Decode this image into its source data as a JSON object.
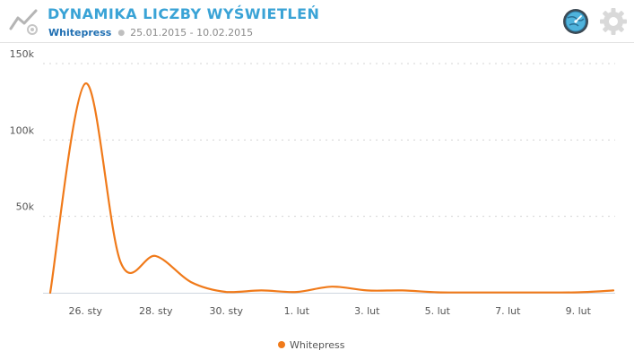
{
  "header": {
    "title": "DYNAMIKA LICZBY WYŚWIETLEŃ",
    "brand": "Whitepress",
    "date_range": "25.01.2015 - 10.02.2015",
    "icons": [
      "line-chart-icon",
      "globe-icon",
      "gear-icon"
    ]
  },
  "colors": {
    "accent": "#3aa3d6",
    "brand": "#1f6fb2",
    "series": "#f07a1a",
    "grid": "#d4d4d4"
  },
  "chart_data": {
    "type": "line",
    "x": [
      "25.01.2015",
      "26.01.2015",
      "27.01.2015",
      "28.01.2015",
      "29.01.2015",
      "30.01.2015",
      "31.01.2015",
      "01.02.2015",
      "02.02.2015",
      "03.02.2015",
      "04.02.2015",
      "05.02.2015",
      "06.02.2015",
      "07.02.2015",
      "08.02.2015",
      "09.02.2015",
      "10.02.2015"
    ],
    "series": [
      {
        "name": "Whitepress",
        "values": [
          0,
          137000,
          20000,
          24000,
          7000,
          500,
          1500,
          500,
          4000,
          1500,
          1500,
          300,
          200,
          200,
          200,
          300,
          1500
        ]
      }
    ],
    "y_ticks": [
      {
        "value": 50000,
        "label": "50k"
      },
      {
        "value": 100000,
        "label": "100k"
      },
      {
        "value": 150000,
        "label": "150k"
      }
    ],
    "x_ticks": [
      {
        "index": 1,
        "label": "26. sty"
      },
      {
        "index": 3,
        "label": "28. sty"
      },
      {
        "index": 5,
        "label": "30. sty"
      },
      {
        "index": 7,
        "label": "1. lut"
      },
      {
        "index": 9,
        "label": "3. lut"
      },
      {
        "index": 11,
        "label": "5. lut"
      },
      {
        "index": 13,
        "label": "7. lut"
      },
      {
        "index": 15,
        "label": "9. lut"
      }
    ],
    "ylim": [
      0,
      150000
    ],
    "grid": true,
    "legend": "bottom-center",
    "legend_entries": [
      "Whitepress"
    ]
  }
}
